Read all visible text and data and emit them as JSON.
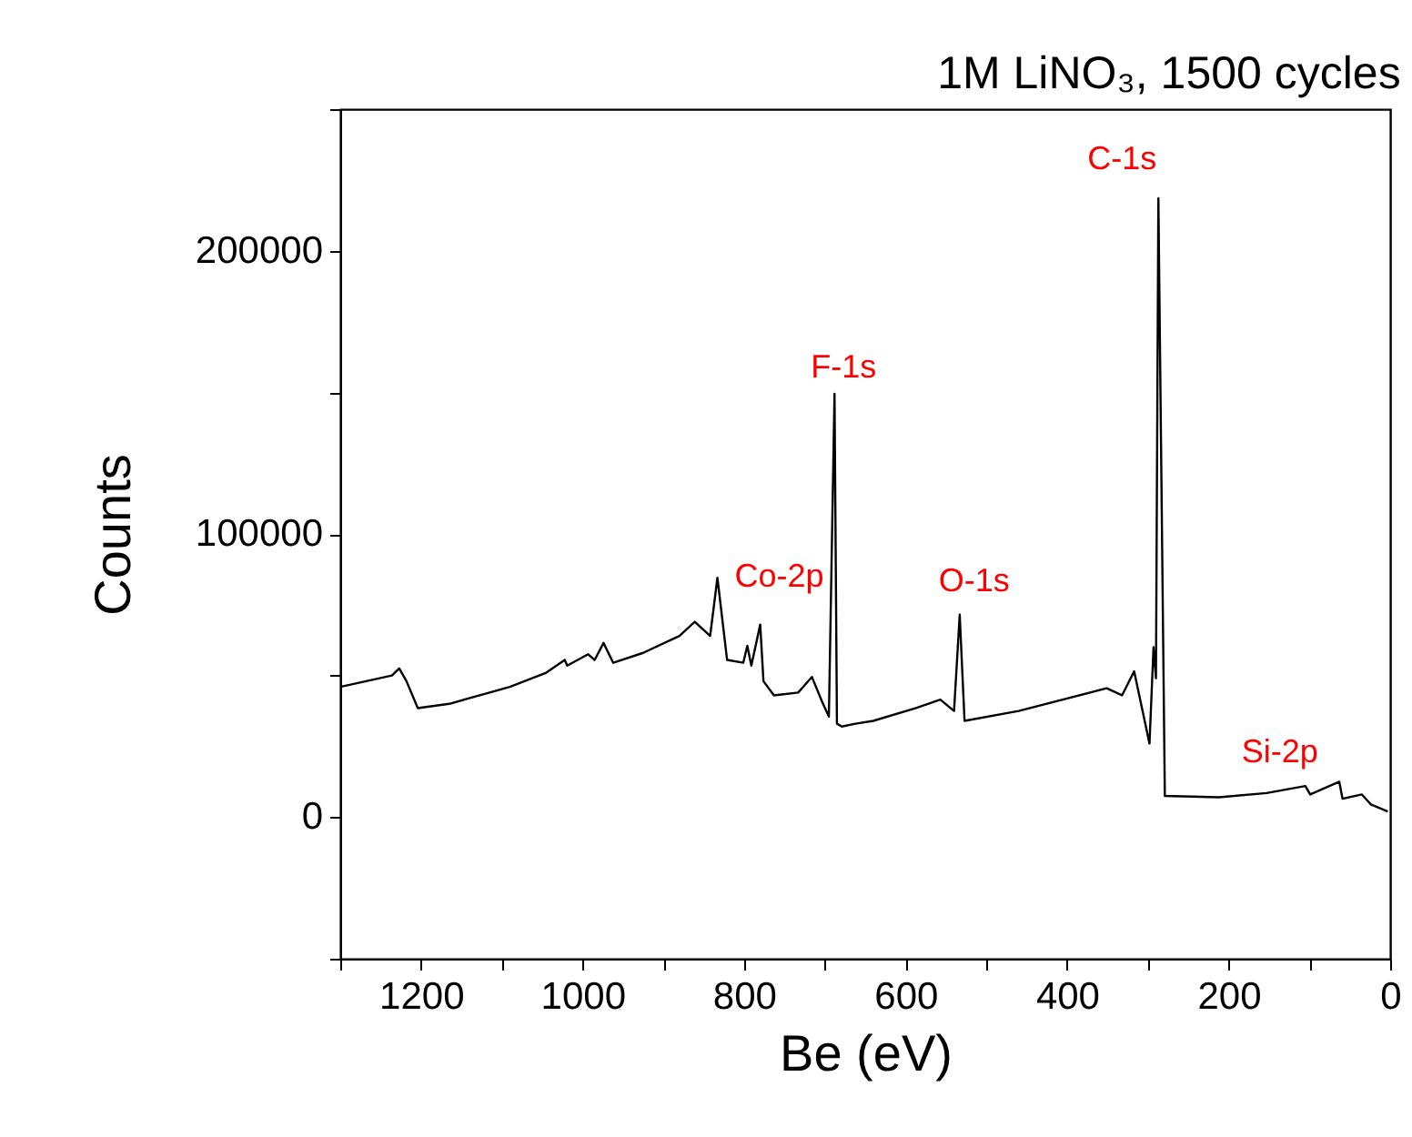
{
  "chart_data": {
    "type": "line",
    "title": "1M LiNO₃, 1500 cycles",
    "xlabel": "Be (eV)",
    "ylabel": "Counts",
    "xlim": [
      1300,
      0
    ],
    "xticks": [
      {
        "value": 1300,
        "label": null
      },
      1200,
      {
        "value": 1100,
        "label": null
      },
      1000,
      {
        "value": 900,
        "label": null
      },
      800,
      {
        "value": 700,
        "label": null
      },
      600,
      {
        "value": 500,
        "label": null
      },
      400,
      {
        "value": 300,
        "label": null
      },
      200,
      {
        "value": 100,
        "label": null
      },
      0
    ],
    "ylim": [
      -50000,
      250000
    ],
    "yticks": [
      {
        "value": -50000,
        "label": null
      },
      0,
      {
        "value": 50000,
        "label": null
      },
      100000,
      {
        "value": 150000,
        "label": null
      },
      200000,
      {
        "value": 250000,
        "label": null
      }
    ],
    "grid": false,
    "series": [
      {
        "color": "#000000",
        "x": [
          1300,
          1236,
          1227,
          1218,
          1204,
          1165,
          1090,
          1045,
          1022,
          1019,
          993,
          985,
          974,
          962,
          925,
          880,
          861,
          842,
          833,
          821,
          801,
          796,
          791,
          780,
          776,
          763,
          733,
          716,
          703,
          695,
          688,
          685,
          679,
          662,
          640,
          587,
          557,
          540,
          533,
          527,
          460,
          351,
          332,
          317,
          298,
          293,
          290,
          287,
          279,
          212,
          153,
          105,
          99,
          63,
          59,
          35,
          24,
          3
        ],
        "values": [
          46000,
          50000,
          52500,
          48000,
          38500,
          40000,
          46000,
          51000,
          55500,
          53500,
          57500,
          55500,
          61500,
          54500,
          58000,
          64000,
          69000,
          64000,
          84500,
          55500,
          54500,
          60500,
          53500,
          68000,
          48000,
          43000,
          44000,
          49500,
          40500,
          35500,
          149500,
          33000,
          32000,
          33000,
          34000,
          38500,
          41500,
          37500,
          71500,
          34000,
          37500,
          45500,
          43000,
          51500,
          26000,
          60000,
          49000,
          218500,
          7500,
          7000,
          8500,
          11000,
          8000,
          12500,
          6500,
          8000,
          4500,
          2000
        ]
      }
    ],
    "annotations": [
      {
        "text": "C-1s",
        "x": 287,
        "y": 218500
      },
      {
        "text": "F-1s",
        "x": 688,
        "y": 149500
      },
      {
        "text": "Co-2p",
        "x": 833,
        "y": 84500
      },
      {
        "text": "O-1s",
        "x": 533,
        "y": 71500
      },
      {
        "text": "Si-2p",
        "x": 105,
        "y": 11000
      }
    ]
  }
}
